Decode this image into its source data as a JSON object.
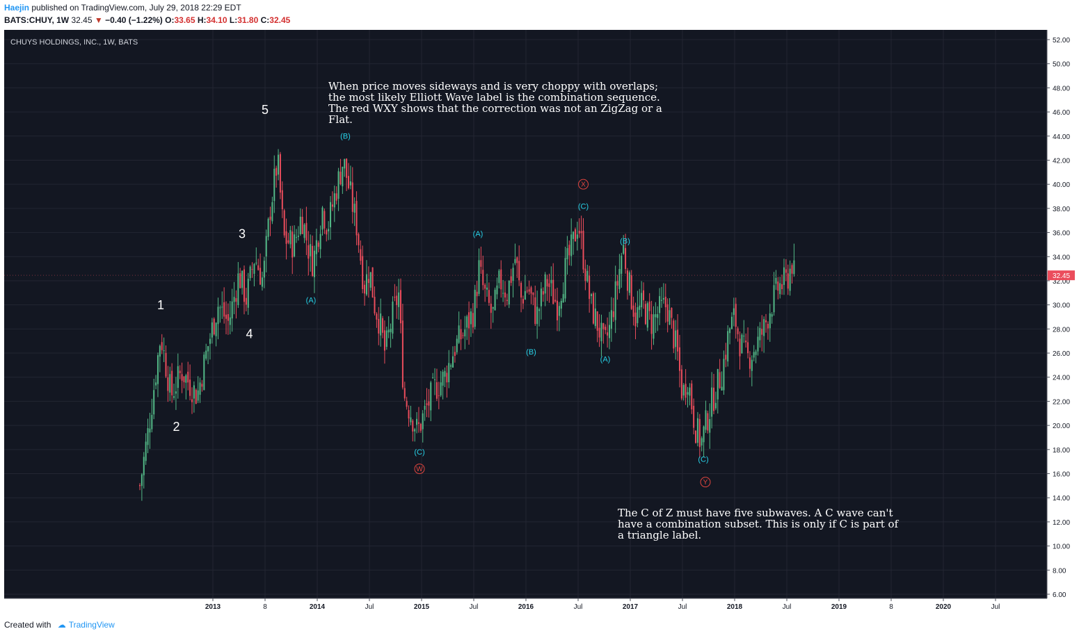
{
  "header": {
    "author": "Haejin",
    "published_text": "published on TradingView.com, July 29, 2018 22:29 EDT",
    "symbol": "BATS:CHUY, 1W",
    "price": "32.45",
    "change": "−0.40 (−1.22%)",
    "open_label": "O:",
    "open": "33.65",
    "high_label": "H:",
    "high": "34.10",
    "low_label": "L:",
    "low": "31.80",
    "close_label": "C:",
    "close": "32.45"
  },
  "chart_title": "CHUYS HOLDINGS, INC., 1W, BATS",
  "footer": {
    "created_with": "Created with",
    "brand": "TradingView"
  },
  "colors": {
    "background": "#131722",
    "up": "#53b987",
    "down": "#eb4d5c",
    "wave_cyan": "#27d2e8",
    "wave_red": "#e0453f",
    "text_white": "#ffffff",
    "price_tag": "#eb4d5c"
  },
  "annotations": {
    "note1": [
      "When price moves sideways and is very choppy with overlaps;",
      "the most likely Elliott Wave label is the combination sequence.",
      "The red WXY shows that the correction was not an ZigZag or a",
      "Flat."
    ],
    "note2": [
      "The C of Z must have five subwaves. A C wave can't",
      "have a combination subset. This is only if C is part of",
      "a triangle label."
    ]
  },
  "chart_data": {
    "type": "candlestick",
    "title": "CHUYS HOLDINGS, INC., 1W, BATS",
    "ylim": [
      6,
      52
    ],
    "y_ticks": [
      "52.00",
      "50.00",
      "48.00",
      "46.00",
      "44.00",
      "42.00",
      "40.00",
      "38.00",
      "36.00",
      "34.00",
      "32.00",
      "30.00",
      "28.00",
      "26.00",
      "24.00",
      "22.00",
      "20.00",
      "18.00",
      "16.00",
      "14.00",
      "12.00",
      "10.00",
      "8.00",
      "6.00"
    ],
    "x_ticks": [
      {
        "label": "2013",
        "bold": true,
        "t": 2013.0
      },
      {
        "label": "8",
        "bold": false,
        "t": 2013.5
      },
      {
        "label": "2014",
        "bold": true,
        "t": 2014.0
      },
      {
        "label": "Jul",
        "bold": false,
        "t": 2014.5
      },
      {
        "label": "2015",
        "bold": true,
        "t": 2015.0
      },
      {
        "label": "Jul",
        "bold": false,
        "t": 2015.5
      },
      {
        "label": "2016",
        "bold": true,
        "t": 2016.0
      },
      {
        "label": "Jul",
        "bold": false,
        "t": 2016.5
      },
      {
        "label": "2017",
        "bold": true,
        "t": 2017.0
      },
      {
        "label": "Jul",
        "bold": false,
        "t": 2017.5
      },
      {
        "label": "2018",
        "bold": true,
        "t": 2018.0
      },
      {
        "label": "Jul",
        "bold": false,
        "t": 2018.5
      },
      {
        "label": "2019",
        "bold": true,
        "t": 2019.0
      },
      {
        "label": "8",
        "bold": false,
        "t": 2019.5
      },
      {
        "label": "2020",
        "bold": true,
        "t": 2020.0
      },
      {
        "label": "Jul",
        "bold": false,
        "t": 2020.5
      }
    ],
    "last_price": 32.45,
    "last_price_label": "32.45",
    "price_path": [
      [
        2012.3,
        15.0
      ],
      [
        2012.38,
        19.5
      ],
      [
        2012.5,
        27.5
      ],
      [
        2012.6,
        22.5
      ],
      [
        2012.7,
        24.5
      ],
      [
        2012.85,
        22.5
      ],
      [
        2012.95,
        26.5
      ],
      [
        2013.05,
        30.0
      ],
      [
        2013.15,
        28.5
      ],
      [
        2013.25,
        32.5
      ],
      [
        2013.32,
        30.5
      ],
      [
        2013.4,
        34.0
      ],
      [
        2013.48,
        32.0
      ],
      [
        2013.55,
        38.0
      ],
      [
        2013.62,
        42.0
      ],
      [
        2013.68,
        35.5
      ],
      [
        2013.78,
        35.0
      ],
      [
        2013.85,
        37.5
      ],
      [
        2013.92,
        34.5
      ],
      [
        2013.96,
        33.5
      ],
      [
        2014.05,
        38.0
      ],
      [
        2014.1,
        36.5
      ],
      [
        2014.18,
        39.5
      ],
      [
        2014.25,
        42.0
      ],
      [
        2014.32,
        39.0
      ],
      [
        2014.38,
        36.5
      ],
      [
        2014.45,
        31.5
      ],
      [
        2014.5,
        33.0
      ],
      [
        2014.55,
        30.0
      ],
      [
        2014.6,
        28.5
      ],
      [
        2014.65,
        26.0
      ],
      [
        2014.72,
        29.0
      ],
      [
        2014.78,
        31.0
      ],
      [
        2014.83,
        22.5
      ],
      [
        2014.9,
        21.0
      ],
      [
        2014.96,
        19.5
      ],
      [
        2015.05,
        21.5
      ],
      [
        2015.12,
        23.0
      ],
      [
        2015.22,
        24.0
      ],
      [
        2015.32,
        26.5
      ],
      [
        2015.42,
        28.0
      ],
      [
        2015.5,
        29.5
      ],
      [
        2015.55,
        33.0
      ],
      [
        2015.6,
        31.0
      ],
      [
        2015.68,
        29.0
      ],
      [
        2015.75,
        32.0
      ],
      [
        2015.82,
        31.0
      ],
      [
        2015.9,
        34.0
      ],
      [
        2015.95,
        30.5
      ],
      [
        2016.02,
        31.5
      ],
      [
        2016.1,
        29.0
      ],
      [
        2016.2,
        32.0
      ],
      [
        2016.3,
        30.0
      ],
      [
        2016.38,
        33.0
      ],
      [
        2016.45,
        35.0
      ],
      [
        2016.5,
        37.0
      ],
      [
        2016.55,
        34.0
      ],
      [
        2016.62,
        30.0
      ],
      [
        2016.7,
        28.0
      ],
      [
        2016.75,
        26.5
      ],
      [
        2016.8,
        28.0
      ],
      [
        2016.88,
        32.0
      ],
      [
        2016.93,
        35.0
      ],
      [
        2016.98,
        32.0
      ],
      [
        2017.05,
        29.0
      ],
      [
        2017.12,
        30.0
      ],
      [
        2017.2,
        28.5
      ],
      [
        2017.28,
        29.5
      ],
      [
        2017.35,
        30.0
      ],
      [
        2017.4,
        28.0
      ],
      [
        2017.45,
        26.0
      ],
      [
        2017.5,
        22.5
      ],
      [
        2017.55,
        24.0
      ],
      [
        2017.62,
        20.0
      ],
      [
        2017.68,
        18.5
      ],
      [
        2017.75,
        21.0
      ],
      [
        2017.82,
        23.0
      ],
      [
        2017.88,
        24.5
      ],
      [
        2017.95,
        28.0
      ],
      [
        2018.0,
        29.0
      ],
      [
        2018.05,
        27.0
      ],
      [
        2018.12,
        25.5
      ],
      [
        2018.2,
        26.5
      ],
      [
        2018.28,
        28.0
      ],
      [
        2018.35,
        30.0
      ],
      [
        2018.42,
        31.5
      ],
      [
        2018.5,
        32.0
      ],
      [
        2018.55,
        33.5
      ],
      [
        2018.57,
        32.45
      ]
    ],
    "wave_labels": [
      {
        "text": "1",
        "color": "white",
        "t": 2012.5,
        "y": 30.0,
        "size": 18
      },
      {
        "text": "2",
        "color": "white",
        "t": 2012.65,
        "y": 19.9,
        "size": 18
      },
      {
        "text": "3",
        "color": "white",
        "t": 2013.28,
        "y": 35.9,
        "size": 18
      },
      {
        "text": "4",
        "color": "white",
        "t": 2013.35,
        "y": 27.6,
        "size": 18
      },
      {
        "text": "5",
        "color": "white",
        "t": 2013.5,
        "y": 46.2,
        "size": 18
      },
      {
        "text": "(A)",
        "color": "cyan",
        "t": 2013.94,
        "y": 30.4,
        "size": 11
      },
      {
        "text": "(B)",
        "color": "cyan",
        "t": 2014.27,
        "y": 44.0,
        "size": 11
      },
      {
        "text": "(C)",
        "color": "cyan",
        "t": 2014.98,
        "y": 17.8,
        "size": 11
      },
      {
        "text": "(A)",
        "color": "cyan",
        "t": 2015.54,
        "y": 35.9,
        "size": 11
      },
      {
        "text": "(B)",
        "color": "cyan",
        "t": 2016.05,
        "y": 26.1,
        "size": 11
      },
      {
        "text": "(C)",
        "color": "cyan",
        "t": 2016.55,
        "y": 38.2,
        "size": 11
      },
      {
        "text": "(B)",
        "color": "cyan",
        "t": 2016.95,
        "y": 35.3,
        "size": 11
      },
      {
        "text": "(A)",
        "color": "cyan",
        "t": 2016.76,
        "y": 25.5,
        "size": 11
      },
      {
        "text": "(C)",
        "color": "cyan",
        "t": 2017.7,
        "y": 17.2,
        "size": 11
      },
      {
        "text": "W",
        "color": "red",
        "t": 2014.98,
        "y": 16.4,
        "size": 10
      },
      {
        "text": "X",
        "color": "red",
        "t": 2016.55,
        "y": 40.0,
        "size": 10
      },
      {
        "text": "Y",
        "color": "red",
        "t": 2017.72,
        "y": 15.3,
        "size": 10
      }
    ]
  }
}
